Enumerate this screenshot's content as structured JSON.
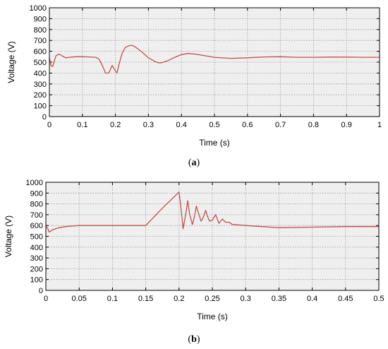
{
  "chart_data": [
    {
      "type": "line",
      "title": "",
      "xlabel": "Time (s)",
      "ylabel": "Voltage (V)",
      "xlim": [
        0,
        1
      ],
      "ylim": [
        0,
        1000
      ],
      "xticks": [
        "0",
        "0.1",
        "0.2",
        "0.3",
        "0.4",
        "0.5",
        "0.6",
        "0.7",
        "0.8",
        "0.9",
        "1"
      ],
      "yticks": [
        "0",
        "100",
        "200",
        "300",
        "400",
        "500",
        "600",
        "700",
        "800",
        "900",
        "1000"
      ],
      "grid": true,
      "caption_prefix": "(",
      "caption_letter": "a",
      "caption_suffix": ")",
      "series": [
        {
          "color": "#c0504d",
          "x": [
            0,
            0.005,
            0.01,
            0.015,
            0.02,
            0.03,
            0.04,
            0.05,
            0.06,
            0.08,
            0.1,
            0.12,
            0.14,
            0.15,
            0.16,
            0.17,
            0.18,
            0.19,
            0.2,
            0.205,
            0.21,
            0.22,
            0.23,
            0.24,
            0.25,
            0.26,
            0.28,
            0.3,
            0.32,
            0.33,
            0.34,
            0.36,
            0.38,
            0.4,
            0.42,
            0.44,
            0.46,
            0.5,
            0.55,
            0.6,
            0.65,
            0.7,
            0.75,
            0.8,
            0.85,
            0.9,
            0.95,
            1.0
          ],
          "y": [
            540,
            470,
            460,
            510,
            560,
            575,
            555,
            540,
            545,
            550,
            550,
            548,
            545,
            530,
            470,
            400,
            400,
            470,
            420,
            400,
            470,
            580,
            635,
            650,
            655,
            640,
            595,
            540,
            505,
            495,
            495,
            515,
            545,
            570,
            580,
            575,
            565,
            545,
            535,
            540,
            548,
            550,
            545,
            545,
            547,
            547,
            545,
            545
          ]
        }
      ]
    },
    {
      "type": "line",
      "title": "",
      "xlabel": "Time (s)",
      "ylabel": "Voltage (V)",
      "xlim": [
        0,
        0.5
      ],
      "ylim": [
        0,
        1000
      ],
      "xticks": [
        "0",
        "0.05",
        "0.1",
        "0.15",
        "0.2",
        "0.25",
        "0.3",
        "0.35",
        "0.4",
        "0.45",
        "0.5"
      ],
      "yticks": [
        "0",
        "100",
        "200",
        "300",
        "400",
        "500",
        "600",
        "700",
        "800",
        "900",
        "1000"
      ],
      "grid": true,
      "caption_prefix": "(",
      "caption_letter": "b",
      "caption_suffix": ")",
      "series": [
        {
          "color": "#c0504d",
          "x": [
            0,
            0.003,
            0.005,
            0.01,
            0.02,
            0.03,
            0.04,
            0.05,
            0.07,
            0.1,
            0.12,
            0.15,
            0.175,
            0.2,
            0.203,
            0.206,
            0.21,
            0.213,
            0.216,
            0.22,
            0.223,
            0.226,
            0.23,
            0.233,
            0.236,
            0.24,
            0.243,
            0.246,
            0.25,
            0.255,
            0.26,
            0.265,
            0.27,
            0.275,
            0.28,
            0.3,
            0.35,
            0.4,
            0.45,
            0.5
          ],
          "y": [
            600,
            570,
            540,
            560,
            580,
            590,
            595,
            600,
            600,
            600,
            600,
            600,
            760,
            910,
            760,
            570,
            700,
            830,
            700,
            610,
            680,
            780,
            700,
            640,
            670,
            740,
            680,
            640,
            650,
            700,
            620,
            660,
            630,
            630,
            610,
            600,
            580,
            585,
            590,
            590
          ]
        }
      ]
    }
  ]
}
